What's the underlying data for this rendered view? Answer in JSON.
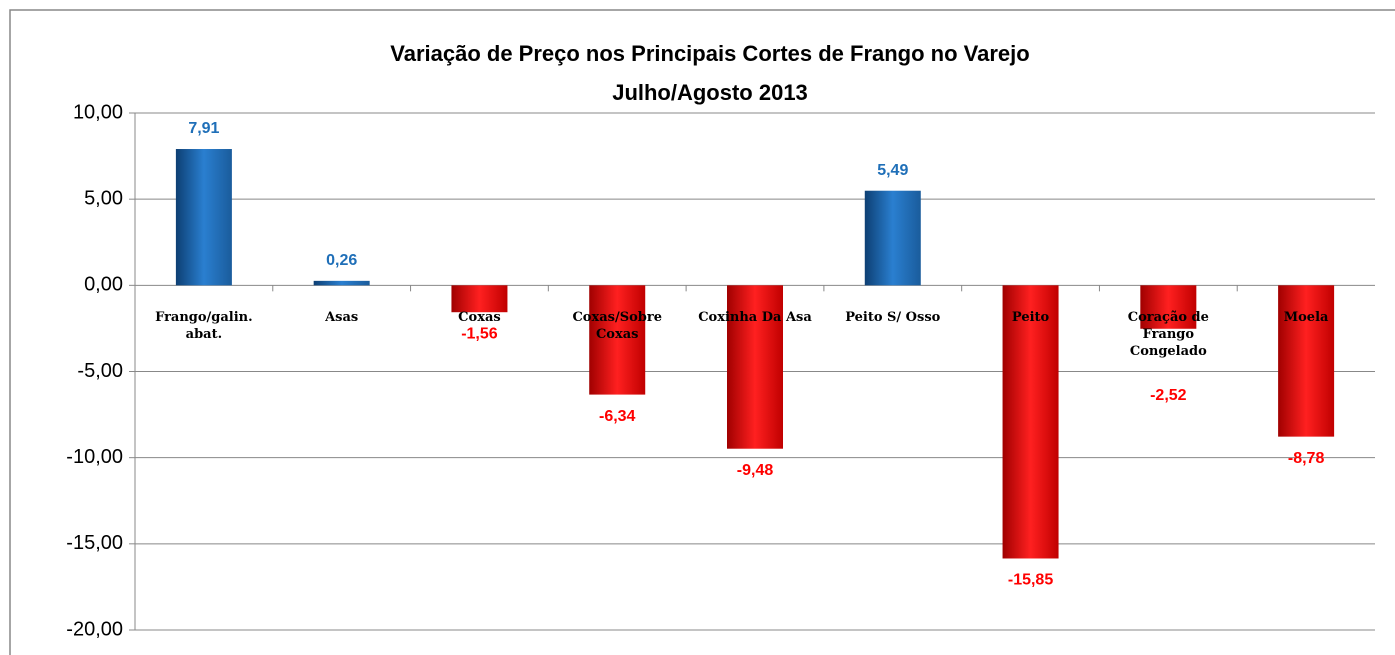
{
  "chart_data": {
    "type": "bar",
    "title": "Variação de Preço nos Principais Cortes de Frango no Varejo",
    "subtitle": "Julho/Agosto 2013",
    "categories": [
      "Frango/galin. abat.",
      "Asas",
      "Coxas",
      "Coxas/Sobre Coxas",
      "Coxinha Da Asa",
      "Peito S/ Osso",
      "Peito",
      "Coração de Frango Congelado",
      "Moela"
    ],
    "values": [
      7.91,
      0.26,
      -1.56,
      -6.34,
      -9.48,
      5.49,
      -15.85,
      -2.52,
      -8.78
    ],
    "value_labels": [
      "7,91",
      "0,26",
      "-1,56",
      "-6,34",
      "-9,48",
      "5,49",
      "-15,85",
      "-2,52",
      "-8,78"
    ],
    "color_positive": "#1f6fb8",
    "color_negative": "#ff0000",
    "ylim": [
      -20,
      10
    ],
    "yticks": [
      {
        "value": -20,
        "label": "-20,00"
      },
      {
        "value": -15,
        "label": "-15,00"
      },
      {
        "value": -10,
        "label": "-10,00"
      },
      {
        "value": -5,
        "label": "-5,00"
      },
      {
        "value": 0,
        "label": "0,00"
      },
      {
        "value": 5,
        "label": "5,00"
      },
      {
        "value": 10,
        "label": "10,00"
      }
    ],
    "grid": true
  }
}
